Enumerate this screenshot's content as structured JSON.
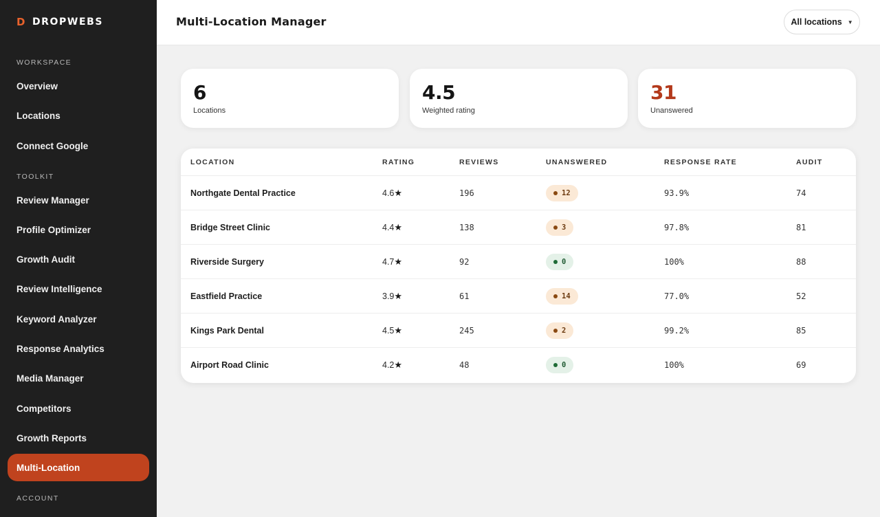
{
  "brand": {
    "mark": "D",
    "name": "DROPWEBS"
  },
  "sidebar": {
    "sections": [
      {
        "label": "WORKSPACE",
        "items": [
          "Overview",
          "Locations",
          "Connect Google"
        ]
      },
      {
        "label": "TOOLKIT",
        "items": [
          "Review Manager",
          "Profile Optimizer",
          "Growth Audit",
          "Review Intelligence",
          "Keyword Analyzer",
          "Response Analytics",
          "Media Manager",
          "Competitors",
          "Growth Reports",
          "Multi-Location"
        ]
      },
      {
        "label": "ACCOUNT",
        "items": []
      }
    ],
    "active_item": "Multi-Location"
  },
  "header": {
    "title": "Multi-Location Manager",
    "location_filter": "All locations"
  },
  "stats": [
    {
      "value": "6",
      "label": "Locations",
      "alert": false
    },
    {
      "value": "4.5",
      "label": "Weighted rating",
      "alert": false
    },
    {
      "value": "31",
      "label": "Unanswered",
      "alert": true
    }
  ],
  "table": {
    "columns": [
      "LOCATION",
      "RATING",
      "REVIEWS",
      "UNANSWERED",
      "RESPONSE RATE",
      "AUDIT"
    ],
    "rows": [
      {
        "location": "Northgate Dental Practice",
        "rating": "4.6",
        "reviews": "196",
        "unanswered": "12",
        "status": "warn",
        "response_rate": "93.9%",
        "audit": "74"
      },
      {
        "location": "Bridge Street Clinic",
        "rating": "4.4",
        "reviews": "138",
        "unanswered": "3",
        "status": "warn",
        "response_rate": "97.8%",
        "audit": "81"
      },
      {
        "location": "Riverside Surgery",
        "rating": "4.7",
        "reviews": "92",
        "unanswered": "0",
        "status": "ok",
        "response_rate": "100%",
        "audit": "88"
      },
      {
        "location": "Eastfield Practice",
        "rating": "3.9",
        "reviews": "61",
        "unanswered": "14",
        "status": "warn",
        "response_rate": "77.0%",
        "audit": "52"
      },
      {
        "location": "Kings Park Dental",
        "rating": "4.5",
        "reviews": "245",
        "unanswered": "2",
        "status": "warn",
        "response_rate": "99.2%",
        "audit": "85"
      },
      {
        "location": "Airport Road Clinic",
        "rating": "4.2",
        "reviews": "48",
        "unanswered": "0",
        "status": "ok",
        "response_rate": "100%",
        "audit": "69"
      }
    ]
  },
  "colors": {
    "accent": "#c0431e",
    "alert": "#b3391b",
    "sidebar_bg": "#1f1f1f"
  },
  "icons": {
    "rating": "star-icon",
    "status": "dot-icon",
    "dropdown": "chevron-down-icon"
  }
}
